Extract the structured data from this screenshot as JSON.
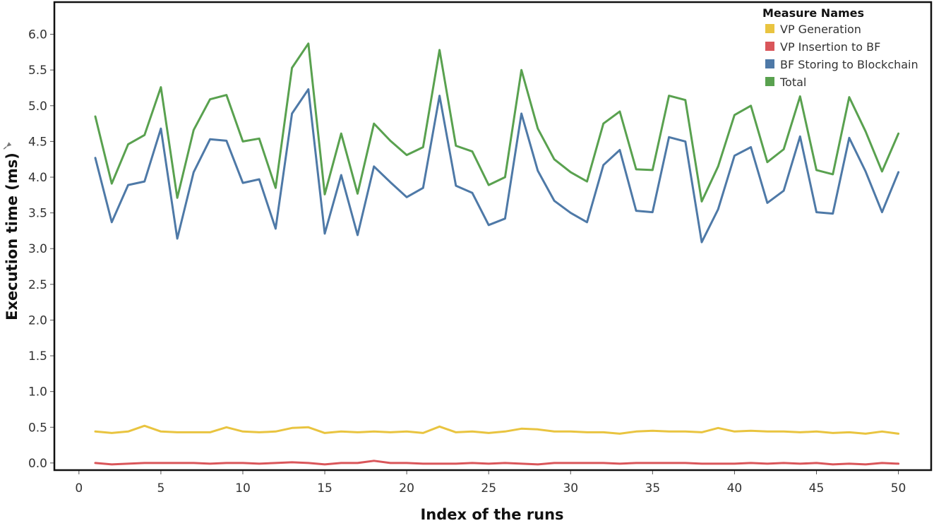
{
  "chart_data": {
    "type": "line",
    "title": "",
    "xlabel": "Index of the runs",
    "ylabel": "Execution time (ms)",
    "xlim": [
      -1.5,
      52
    ],
    "ylim": [
      -0.1,
      6.45
    ],
    "x_ticks": [
      0,
      5,
      10,
      15,
      20,
      25,
      30,
      35,
      40,
      45,
      50
    ],
    "x_tick_labels": [
      "0",
      "5",
      "10",
      "15",
      "20",
      "25",
      "30",
      "35",
      "40",
      "45",
      "50"
    ],
    "y_ticks": [
      0.0,
      0.5,
      1.0,
      1.5,
      2.0,
      2.5,
      3.0,
      3.5,
      4.0,
      4.5,
      5.0,
      5.5,
      6.0
    ],
    "y_tick_labels": [
      "0.0",
      "0.5",
      "1.0",
      "1.5",
      "2.0",
      "2.5",
      "3.0",
      "3.5",
      "4.0",
      "4.5",
      "5.0",
      "5.5",
      "6.0"
    ],
    "grid": false,
    "legend": {
      "title": "Measure Names",
      "placement": "top-right"
    },
    "x": [
      1,
      2,
      3,
      4,
      5,
      6,
      7,
      8,
      9,
      10,
      11,
      12,
      13,
      14,
      15,
      16,
      17,
      18,
      19,
      20,
      21,
      22,
      23,
      24,
      25,
      26,
      27,
      28,
      29,
      30,
      31,
      32,
      33,
      34,
      35,
      36,
      37,
      38,
      39,
      40,
      41,
      42,
      43,
      44,
      45,
      46,
      47,
      48,
      49,
      50
    ],
    "series": [
      {
        "name": "VP Generation",
        "color": "#e9c440",
        "values": [
          0.44,
          0.42,
          0.44,
          0.52,
          0.44,
          0.43,
          0.43,
          0.43,
          0.5,
          0.44,
          0.43,
          0.44,
          0.49,
          0.5,
          0.42,
          0.44,
          0.43,
          0.44,
          0.43,
          0.44,
          0.42,
          0.51,
          0.43,
          0.44,
          0.42,
          0.44,
          0.48,
          0.47,
          0.44,
          0.44,
          0.43,
          0.43,
          0.41,
          0.44,
          0.45,
          0.44,
          0.44,
          0.43,
          0.49,
          0.44,
          0.45,
          0.44,
          0.44,
          0.43,
          0.44,
          0.42,
          0.43,
          0.41,
          0.44,
          0.41
        ]
      },
      {
        "name": "VP Insertion to BF",
        "color": "#d9565a",
        "values": [
          0.0,
          -0.02,
          -0.01,
          0.0,
          0.0,
          0.0,
          0.0,
          -0.01,
          0.0,
          0.0,
          -0.01,
          0.0,
          0.01,
          0.0,
          -0.02,
          0.0,
          0.0,
          0.03,
          0.0,
          0.0,
          -0.01,
          -0.01,
          -0.01,
          0.0,
          -0.01,
          0.0,
          -0.01,
          -0.02,
          0.0,
          0.0,
          0.0,
          0.0,
          -0.01,
          0.0,
          0.0,
          0.0,
          0.0,
          -0.01,
          -0.01,
          -0.01,
          0.0,
          -0.01,
          0.0,
          -0.01,
          0.0,
          -0.02,
          -0.01,
          -0.02,
          0.0,
          -0.01
        ]
      },
      {
        "name": "BF Storing to Blockchain",
        "color": "#4e79a7",
        "values": [
          4.27,
          3.37,
          3.89,
          3.94,
          4.68,
          3.14,
          4.07,
          4.53,
          4.51,
          3.92,
          3.97,
          3.28,
          4.89,
          5.23,
          3.21,
          4.03,
          3.19,
          4.15,
          3.93,
          3.72,
          3.85,
          5.14,
          3.88,
          3.78,
          3.33,
          3.42,
          4.89,
          4.09,
          3.67,
          3.5,
          3.37,
          4.17,
          4.38,
          3.53,
          3.51,
          4.56,
          4.5,
          3.09,
          3.55,
          4.3,
          4.42,
          3.64,
          3.81,
          4.57,
          3.51,
          3.49,
          4.55,
          4.08,
          3.51,
          4.07
        ]
      },
      {
        "name": "Total",
        "color": "#59a14f",
        "values": [
          4.85,
          3.91,
          4.46,
          4.59,
          5.26,
          3.71,
          4.66,
          5.09,
          5.15,
          4.5,
          4.54,
          3.85,
          5.53,
          5.87,
          3.76,
          4.61,
          3.77,
          4.75,
          4.51,
          4.31,
          4.42,
          5.78,
          4.44,
          4.36,
          3.89,
          4.0,
          5.5,
          4.68,
          4.25,
          4.07,
          3.94,
          4.75,
          4.92,
          4.11,
          4.1,
          5.14,
          5.08,
          3.66,
          4.15,
          4.87,
          5.0,
          4.21,
          4.39,
          5.13,
          4.1,
          4.04,
          5.12,
          4.64,
          4.08,
          4.61
        ]
      }
    ]
  }
}
